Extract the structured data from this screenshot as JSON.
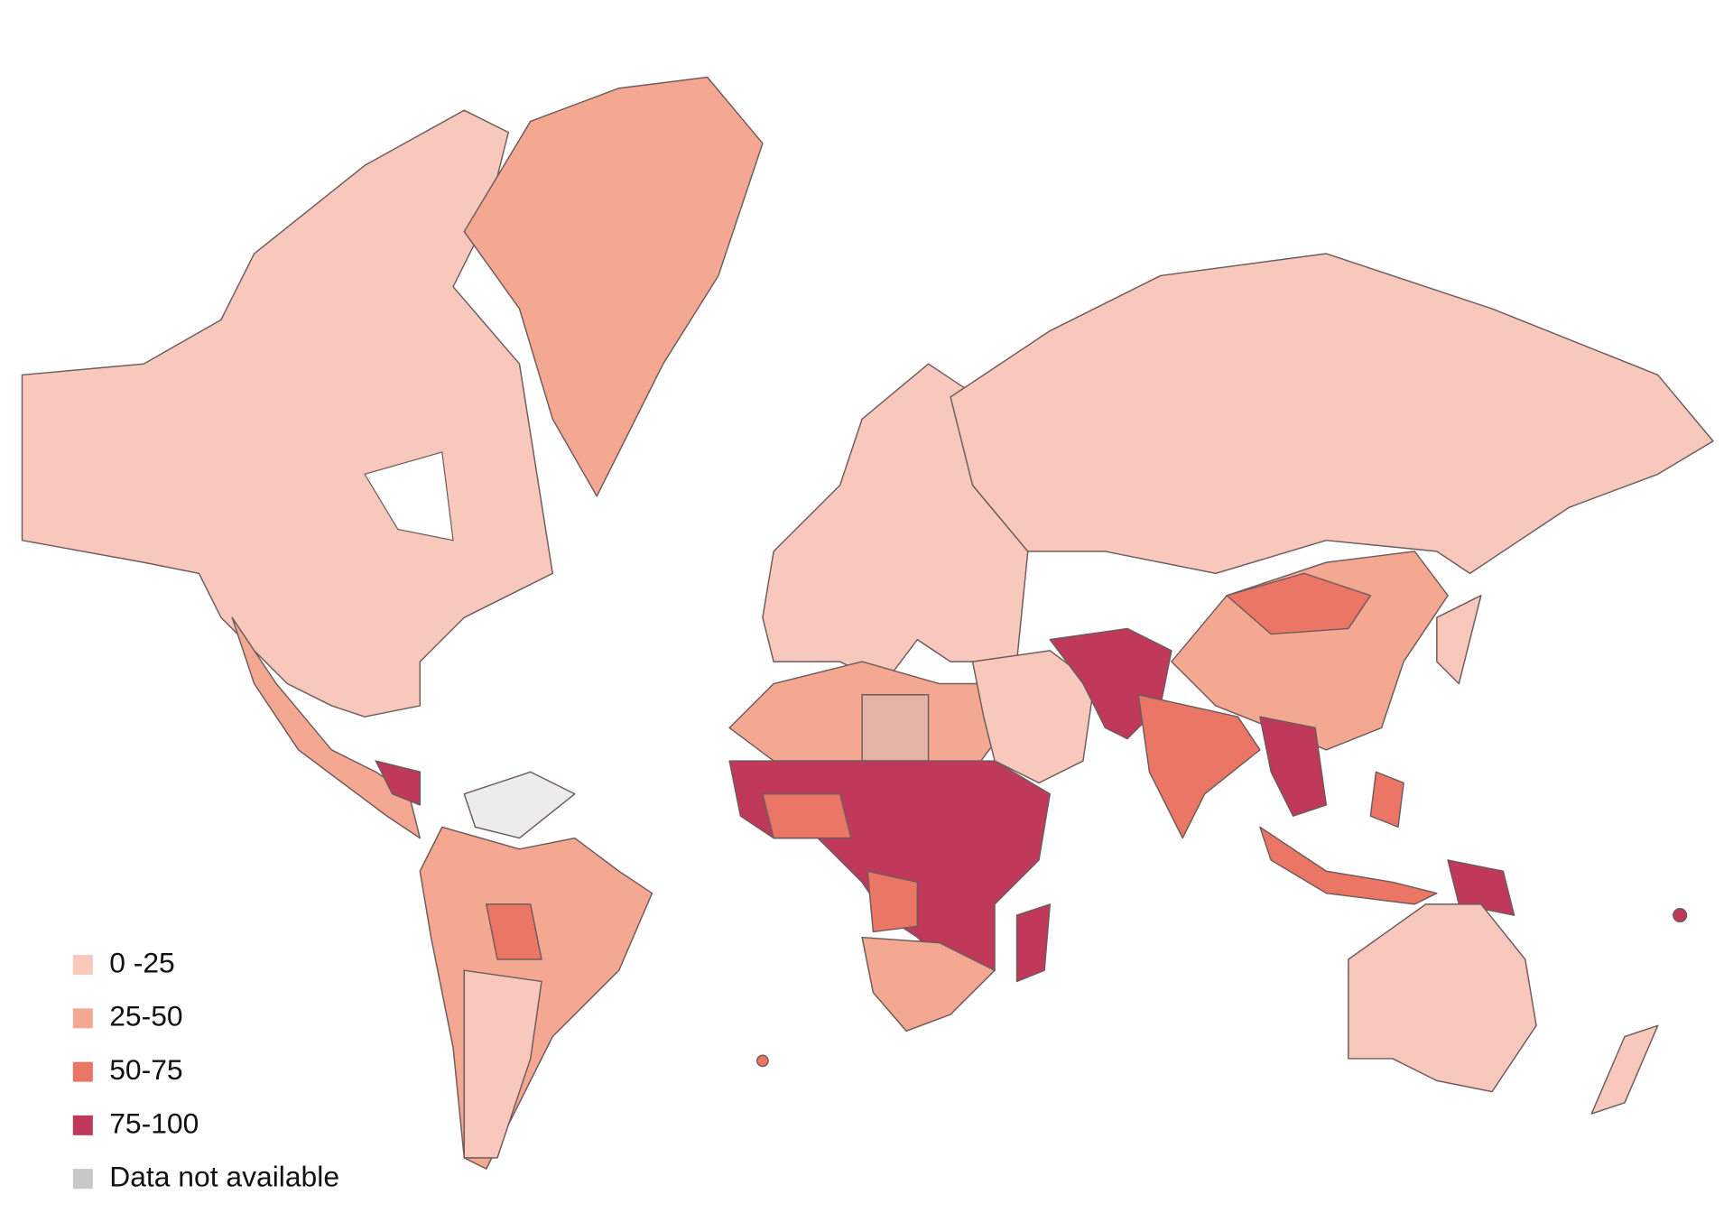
{
  "legend": {
    "items": [
      {
        "label": "0 -25",
        "color": "#f9c8bc"
      },
      {
        "label": "25-50",
        "color": "#f4a892"
      },
      {
        "label": "50-75",
        "color": "#ec7665"
      },
      {
        "label": "75-100",
        "color": "#c0395a"
      },
      {
        "label": "Data not available",
        "color": "#c8c8c8"
      }
    ]
  }
}
